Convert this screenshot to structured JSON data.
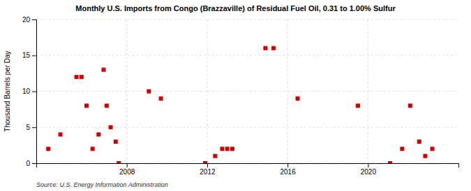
{
  "chart_data": {
    "type": "scatter",
    "title": "Monthly U.S. Imports from Congo (Brazzaville) of Residual Fuel Oil, 0.31 to 1.00% Sulfur",
    "ylabel": "Thousand Barrels per Day",
    "source": "Source: U.S. Energy Information Administration",
    "color": "#cc0000",
    "marker": "square",
    "grid": true,
    "xlim": [
      2003.5,
      2024.5
    ],
    "ylim": [
      0,
      20
    ],
    "xticks": [
      2008,
      2012,
      2016,
      2020
    ],
    "yticks": [
      0,
      5,
      10,
      15,
      20
    ],
    "x": [
      2004.1,
      2004.7,
      2005.5,
      2005.75,
      2006.0,
      2006.3,
      2006.6,
      2006.85,
      2007.0,
      2007.2,
      2007.45,
      2007.6,
      2009.1,
      2009.7,
      2011.9,
      2012.4,
      2012.75,
      2013.0,
      2013.25,
      2014.9,
      2015.3,
      2016.5,
      2019.5,
      2021.1,
      2021.7,
      2022.1,
      2022.55,
      2022.85,
      2023.2
    ],
    "values": [
      2,
      4,
      12,
      12,
      8,
      2,
      4,
      13,
      8,
      5,
      3,
      0,
      10,
      9,
      0,
      1,
      2,
      2,
      2,
      16,
      16,
      9,
      8,
      0,
      2,
      8,
      3,
      1,
      2
    ]
  }
}
